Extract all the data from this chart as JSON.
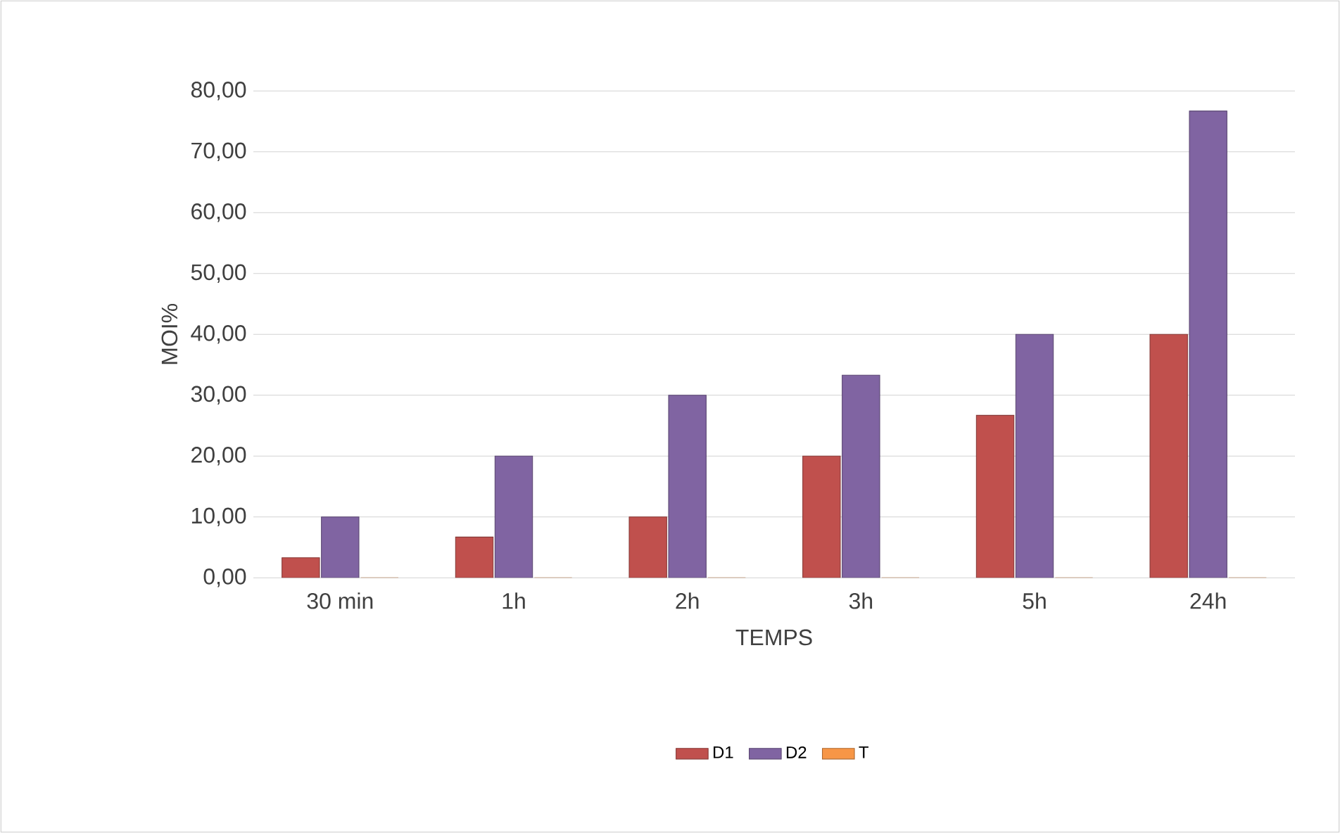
{
  "chart_data": {
    "type": "bar",
    "xlabel": "TEMPS",
    "ylabel": "MOI%",
    "categories": [
      "30 min",
      "1h",
      "2h",
      "3h",
      "5h",
      "24h"
    ],
    "series": [
      {
        "name": "D1",
        "color": "#c0504d",
        "values": [
          3.3,
          6.7,
          10,
          20,
          26.7,
          40
        ]
      },
      {
        "name": "D2",
        "color": "#8064a2",
        "values": [
          10,
          20,
          30,
          33.3,
          40,
          76.7
        ]
      },
      {
        "name": "T",
        "color": "#f79646",
        "values": [
          0,
          0,
          0,
          0,
          0,
          0
        ]
      }
    ],
    "ylim": [
      0,
      80
    ],
    "yticks": [
      {
        "value": 0,
        "label": "0,00"
      },
      {
        "value": 10,
        "label": "10,00"
      },
      {
        "value": 20,
        "label": "20,00"
      },
      {
        "value": 30,
        "label": "30,00"
      },
      {
        "value": 40,
        "label": "40,00"
      },
      {
        "value": 50,
        "label": "50,00"
      },
      {
        "value": 60,
        "label": "60,00"
      },
      {
        "value": 70,
        "label": "70,00"
      },
      {
        "value": 80,
        "label": "80,00"
      }
    ],
    "grid": "y",
    "legend": "bottom"
  }
}
